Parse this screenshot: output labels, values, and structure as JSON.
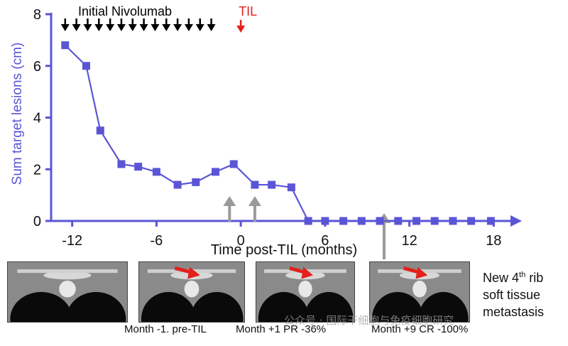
{
  "chart_data": {
    "type": "line",
    "title": "",
    "xlabel": "Time post-TIL (months)",
    "ylabel": "Sum target lesions (cm)",
    "xlim": [
      -13.5,
      19.5
    ],
    "ylim": [
      0,
      8
    ],
    "x_ticks": [
      -12,
      -6,
      0,
      6,
      12,
      18
    ],
    "y_ticks": [
      0,
      2,
      4,
      6,
      8
    ],
    "grid": false,
    "series": [
      {
        "color": "#5b55d6",
        "marker": "square",
        "x": [
          -12.5,
          -11,
          -10,
          -8.5,
          -7.3,
          -6,
          -4.5,
          -3.2,
          -1.8,
          -0.5,
          1,
          2.2,
          3.6,
          4.8,
          6,
          7.3,
          8.6,
          9.9,
          11.2,
          12.5,
          13.8,
          15.1,
          16.4,
          17.8
        ],
        "y": [
          6.8,
          6.0,
          3.5,
          2.2,
          2.1,
          1.9,
          1.4,
          1.5,
          1.9,
          2.2,
          1.4,
          1.4,
          1.3,
          0,
          0,
          0,
          0,
          0,
          0,
          0,
          0,
          0,
          0,
          0
        ]
      }
    ],
    "annotations": {
      "nivolumab_label": "Initial Nivolumab",
      "nivolumab_color": "#000000",
      "nivolumab_doses_x": [
        -12.5,
        -11.7,
        -10.9,
        -10.1,
        -9.3,
        -8.5,
        -7.7,
        -6.9,
        -6.1,
        -5.3,
        -4.5,
        -3.7,
        -2.9,
        -2.1
      ],
      "til_label": "TIL",
      "til_color": "#e3201b",
      "til_x": 0,
      "scan_markers_x": [
        -0.8,
        1.0,
        10.2
      ],
      "scan_marker_color": "#9a9a9a"
    }
  },
  "scans": [
    {
      "label": "",
      "has_arrow": false
    },
    {
      "label": "",
      "has_arrow": true
    },
    {
      "label": "",
      "has_arrow": true
    },
    {
      "label": "",
      "has_arrow": true
    }
  ],
  "captions": {
    "pre_til": "Month -1. pre-TIL",
    "month1": "Month +1 PR -36%",
    "month9": "Month +9 CR -100%"
  },
  "side_note": {
    "line1_prefix": "New 4",
    "line1_sup": "th",
    "line1_suffix": " rib",
    "line2": "soft tissue",
    "line3": "metastasis"
  },
  "watermark": "公众号 · 国际干细胞与免疫细胞研究",
  "colors": {
    "arrow_red": "#e3201b",
    "axis": "#5b55d6"
  }
}
